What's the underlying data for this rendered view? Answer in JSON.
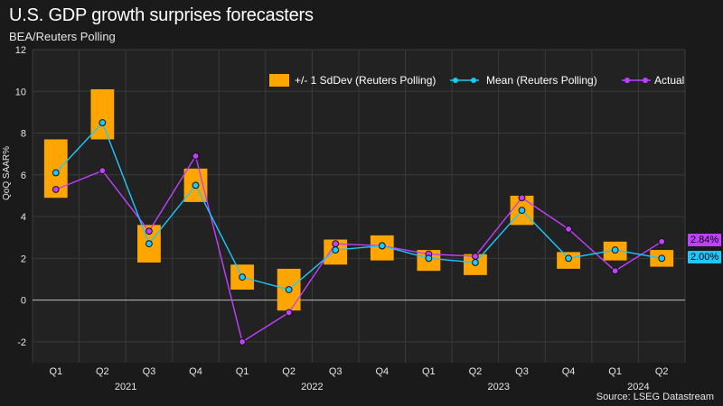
{
  "header": {
    "title": "U.S. GDP growth surprises forecasters",
    "subtitle": "BEA/Reuters Polling"
  },
  "footer": {
    "source": "Source: LSEG Datastream"
  },
  "chart_data": {
    "type": "bar",
    "title": "U.S. GDP growth surprises forecasters",
    "ylabel": "QoQ SAAR%",
    "ylim": [
      -3,
      12
    ],
    "yticks": [
      -2,
      0,
      2,
      4,
      6,
      8,
      10,
      12
    ],
    "categories": [
      "Q1",
      "Q2",
      "Q3",
      "Q4",
      "Q1",
      "Q2",
      "Q3",
      "Q4",
      "Q1",
      "Q2",
      "Q3",
      "Q4",
      "Q1",
      "Q2"
    ],
    "year_groups": [
      {
        "label": "2021",
        "start": 0,
        "end": 3
      },
      {
        "label": "2022",
        "start": 4,
        "end": 7
      },
      {
        "label": "2023",
        "start": 8,
        "end": 11
      },
      {
        "label": "2024",
        "start": 12,
        "end": 13
      }
    ],
    "legend_position": "top-right",
    "series": [
      {
        "name": "+/- 1 SdDev (Reuters Polling)",
        "type": "range",
        "color": "#ffa500",
        "low": [
          4.9,
          7.7,
          1.8,
          4.7,
          0.5,
          -0.5,
          1.7,
          1.9,
          1.4,
          1.2,
          3.6,
          1.5,
          1.9,
          1.6
        ],
        "high": [
          7.7,
          10.1,
          3.6,
          6.3,
          1.7,
          1.5,
          2.9,
          3.1,
          2.4,
          2.2,
          5.0,
          2.3,
          2.8,
          2.4
        ]
      },
      {
        "name": "Mean (Reuters Polling)",
        "type": "line",
        "color": "#1ec8ff",
        "values": [
          6.1,
          8.5,
          2.7,
          5.5,
          1.1,
          0.5,
          2.4,
          2.6,
          2.0,
          1.8,
          4.3,
          2.0,
          2.4,
          2.0
        ]
      },
      {
        "name": "Actual",
        "type": "line",
        "color": "#c040ff",
        "values": [
          5.3,
          6.2,
          3.3,
          6.9,
          -2.0,
          -0.6,
          2.7,
          2.6,
          2.2,
          2.1,
          4.9,
          3.4,
          1.4,
          2.8
        ]
      }
    ],
    "value_tags": [
      {
        "label": "2.84%",
        "value": 2.84,
        "color": "#c040ff"
      },
      {
        "label": "2.00%",
        "value": 2.0,
        "color": "#1ec8ff"
      }
    ]
  }
}
